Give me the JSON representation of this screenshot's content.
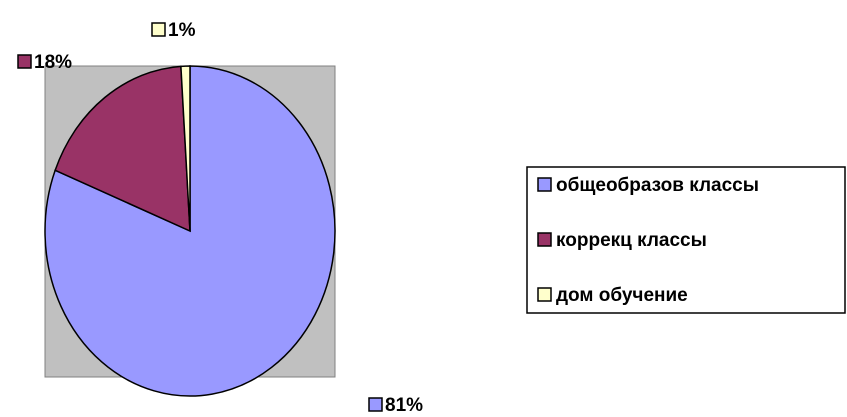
{
  "chart_data": {
    "type": "pie",
    "categories": [
      "общеобразов классы",
      "коррекц классы",
      "дом обучение"
    ],
    "values": [
      81,
      18,
      1
    ],
    "value_labels": [
      "81%",
      "18%",
      "1%"
    ],
    "colors": [
      "#9999ff",
      "#993366",
      "#ffffcc"
    ],
    "legend": "right"
  }
}
